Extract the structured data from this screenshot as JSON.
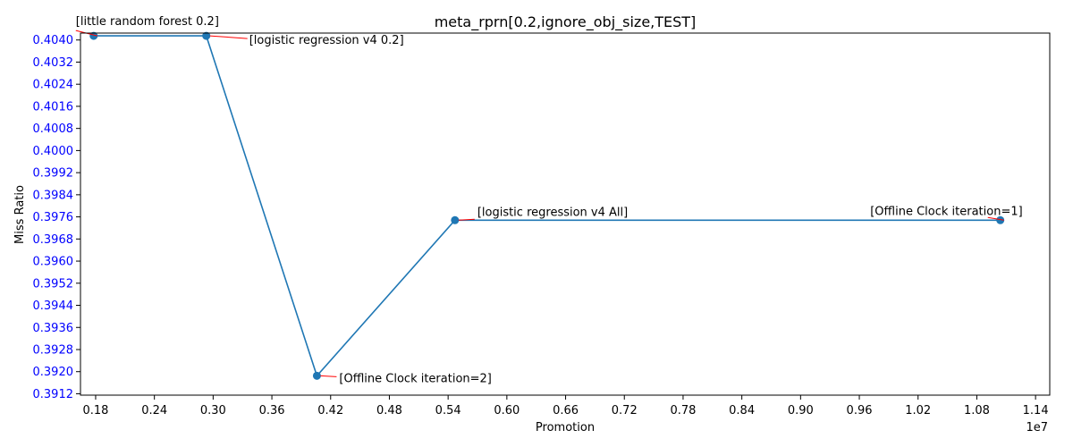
{
  "chart_data": {
    "type": "line",
    "title": "meta_rprn[0.2,ignore_obj_size,TEST]",
    "xlabel": "Promotion",
    "ylabel": "Miss Ratio",
    "x_offset_label": "1e7",
    "xlim": [
      0.1645,
      1.1545
    ],
    "ylim": [
      0.39115,
      0.40425
    ],
    "x_ticks": [
      "0.18",
      "0.24",
      "0.30",
      "0.36",
      "0.42",
      "0.48",
      "0.54",
      "0.60",
      "0.66",
      "0.72",
      "0.78",
      "0.84",
      "0.90",
      "0.96",
      "1.02",
      "1.08",
      "1.14"
    ],
    "y_ticks": [
      "0.3912",
      "0.3920",
      "0.3928",
      "0.3936",
      "0.3944",
      "0.3952",
      "0.3960",
      "0.3968",
      "0.3976",
      "0.3984",
      "0.3992",
      "0.4000",
      "0.4008",
      "0.4016",
      "0.4024",
      "0.4032",
      "0.4040"
    ],
    "grid": false,
    "series": [
      {
        "color": "#1f77b4",
        "x": [
          0.178,
          0.293,
          0.406,
          0.547,
          1.104
        ],
        "y": [
          0.40415,
          0.40415,
          0.39185,
          0.39748,
          0.39748
        ]
      }
    ],
    "annotations": [
      {
        "text": "[little random forest 0.2]",
        "point": 0
      },
      {
        "text": "[logistic regression v4 0.2]",
        "point": 1
      },
      {
        "text": "[Offline Clock iteration=2]",
        "point": 2
      },
      {
        "text": "[logistic regression v4 All]",
        "point": 3
      },
      {
        "text": "[Offline Clock iteration=1]",
        "point": 4
      }
    ],
    "colors": {
      "line": "#1f77b4",
      "y_tick_labels": "#0000ff",
      "annotation_arrow": "#ff0000"
    }
  }
}
